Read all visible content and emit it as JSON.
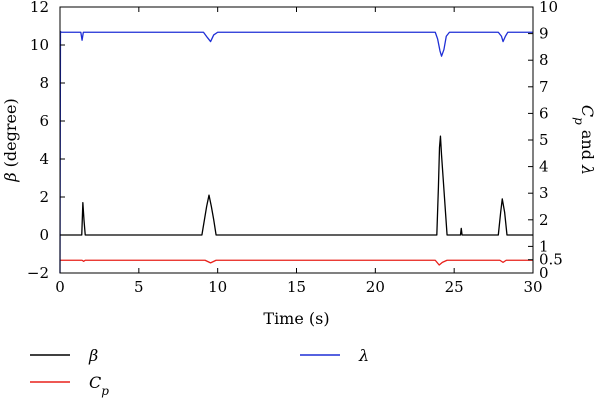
{
  "chart_data": {
    "type": "line",
    "title": "",
    "xlabel": "Time (s)",
    "ylabel_left": "β (degree)",
    "ylabel_right": "C_p and λ",
    "xlim": [
      0,
      30
    ],
    "ylim_left": [
      -2,
      12
    ],
    "ylim_right": [
      0,
      10
    ],
    "x_ticks": [
      0,
      5,
      10,
      15,
      20,
      25,
      30
    ],
    "y_left_ticks": [
      -2,
      0,
      2,
      4,
      6,
      8,
      10,
      12
    ],
    "y_right_ticks": [
      0,
      0.5,
      1,
      2,
      3,
      4,
      5,
      6,
      7,
      8,
      9,
      10
    ],
    "x_tick_labels": [
      "0",
      "5",
      "10",
      "15",
      "20",
      "25",
      "30"
    ],
    "y_left_tick_labels": [
      "−2",
      "0",
      "2",
      "4",
      "6",
      "8",
      "10",
      "12"
    ],
    "y_right_tick_labels": [
      "0",
      "0.5",
      "1",
      "2",
      "3",
      "4",
      "5",
      "6",
      "7",
      "8",
      "9",
      "10"
    ],
    "grid": false,
    "legend_placement": "bottom",
    "series": [
      {
        "name": "β",
        "axis": "left",
        "color": "#000000",
        "x": [
          0,
          1.38,
          1.45,
          1.52,
          1.6,
          9.0,
          9.3,
          9.45,
          9.6,
          9.75,
          9.9,
          23.9,
          24.0,
          24.07,
          24.13,
          24.2,
          24.3,
          24.45,
          24.55,
          25.4,
          25.45,
          25.5,
          27.8,
          27.95,
          28.05,
          28.2,
          28.35,
          30
        ],
        "y": [
          0,
          0,
          1.7,
          0.8,
          0,
          0,
          1.5,
          2.1,
          1.5,
          0.8,
          0,
          0,
          2.5,
          4.6,
          5.2,
          4.2,
          3.0,
          1.2,
          0,
          0,
          0.35,
          0,
          0,
          1.2,
          1.9,
          1.2,
          0,
          0
        ]
      },
      {
        "name": "C_p",
        "axis": "right",
        "color": "#e8201a",
        "x": [
          0,
          1.4,
          1.5,
          1.6,
          9.2,
          9.55,
          9.9,
          23.8,
          24.05,
          24.25,
          24.55,
          27.9,
          28.1,
          28.3,
          30
        ],
        "y": [
          0.48,
          0.48,
          0.44,
          0.48,
          0.48,
          0.38,
          0.48,
          0.48,
          0.3,
          0.4,
          0.48,
          0.48,
          0.4,
          0.48,
          0.48
        ]
      },
      {
        "name": "λ",
        "axis": "right",
        "color": "#1f2fd6",
        "x": [
          0,
          0.03,
          0.08,
          1.32,
          1.4,
          1.48,
          1.56,
          9.1,
          9.35,
          9.55,
          9.75,
          10.0,
          23.8,
          23.95,
          24.1,
          24.2,
          24.35,
          24.5,
          24.7,
          27.8,
          28.0,
          28.1,
          28.25,
          28.4,
          30
        ],
        "y": [
          0,
          9.08,
          9.05,
          9.05,
          8.75,
          9.05,
          9.05,
          9.05,
          8.85,
          8.7,
          8.95,
          9.05,
          9.05,
          8.8,
          8.35,
          8.15,
          8.4,
          8.9,
          9.05,
          9.05,
          8.9,
          8.7,
          8.9,
          9.05,
          9.05
        ]
      }
    ]
  }
}
